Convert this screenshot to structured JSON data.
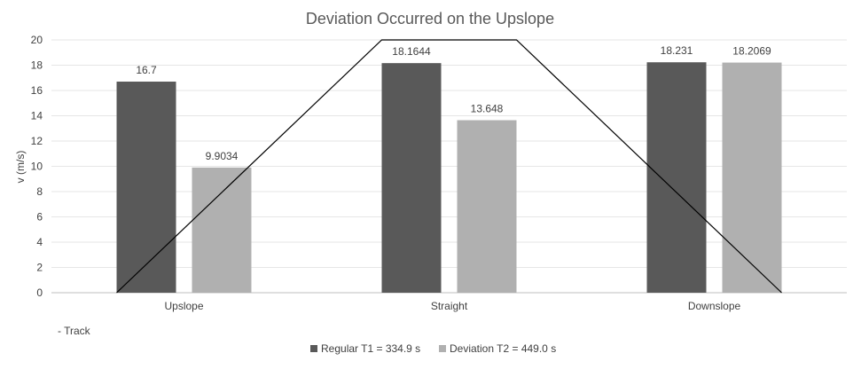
{
  "chart_data": {
    "type": "bar",
    "title": "Deviation Occurred on the Upslope",
    "ylabel": "v (m/s)",
    "xlabel": "",
    "ylim": [
      0,
      20
    ],
    "yticks": [
      0,
      2,
      4,
      6,
      8,
      10,
      12,
      14,
      16,
      18,
      20
    ],
    "grid": true,
    "legend_position": "bottom",
    "categories": [
      "Upslope",
      "Straight",
      "Downslope"
    ],
    "series": [
      {
        "name": "Regular T1 = 334.9 s",
        "values": [
          16.7,
          18.1644,
          18.231
        ],
        "labels": [
          "16.7",
          "18.1644",
          "18.231"
        ],
        "color": "#595959"
      },
      {
        "name": "Deviation T2 = 449.0 s",
        "values": [
          9.9034,
          13.648,
          18.2069
        ],
        "labels": [
          "9.9034",
          "13.648",
          "18.2069"
        ],
        "color": "#b0b0b0"
      }
    ],
    "track_line": {
      "label": "- Track",
      "color": "#000000",
      "points": [
        {
          "x": "Upslope-start",
          "y": 0
        },
        {
          "x": "Straight-start",
          "y": 20
        },
        {
          "x": "Straight-end",
          "y": 20
        },
        {
          "x": "Downslope-end",
          "y": 0
        }
      ]
    }
  }
}
